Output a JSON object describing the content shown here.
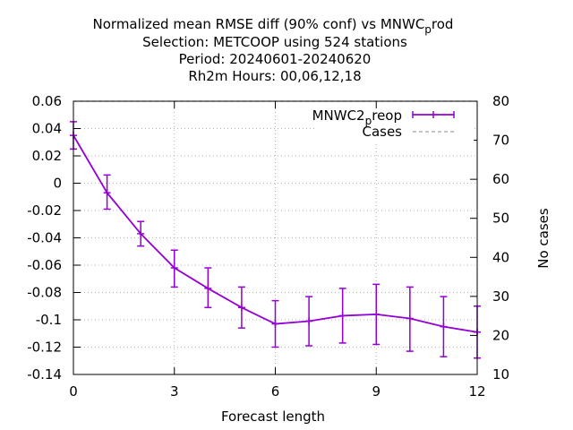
{
  "chart_data": {
    "type": "line",
    "title_lines": [
      "Normalized mean RMSE diff (90% conf) vs MNWC",
      "Selection: METCOOP using   524 stations",
      "Period: 20240601-20240620",
      "Rh2m   Hours: 00,06,12,18"
    ],
    "title_main": "Normalized mean RMSE diff (90% conf) vs MNWC",
    "title_sub": "p",
    "title_tail": "rod",
    "xlabel": "Forecast length",
    "ylabel": "",
    "y2label": "No cases",
    "xlim": [
      0,
      12
    ],
    "ylim": [
      -0.14,
      0.06
    ],
    "y2lim": [
      10,
      80
    ],
    "xticks": [
      "0",
      "3",
      "6",
      "9",
      "12"
    ],
    "yticks": [
      "0.06",
      "0.04",
      "0.02",
      "0",
      "-0.02",
      "-0.04",
      "-0.06",
      "-0.08",
      "-0.1",
      "-0.12",
      "-0.14"
    ],
    "y2ticks": [
      "80",
      "70",
      "60",
      "50",
      "40",
      "30",
      "20",
      "10"
    ],
    "grid": true,
    "legend_position": "top-right",
    "colors": {
      "series": "#9400d3",
      "cases": "#a0a0a0"
    },
    "series": [
      {
        "name_main": "MNWC2",
        "name_sub": "p",
        "name_tail": "reop",
        "x": [
          0,
          1,
          2,
          3,
          4,
          5,
          6,
          7,
          8,
          9,
          10,
          11,
          12
        ],
        "values": [
          0.035,
          -0.007,
          -0.037,
          -0.062,
          -0.077,
          -0.091,
          -0.103,
          -0.101,
          -0.097,
          -0.096,
          -0.099,
          -0.105,
          -0.109
        ],
        "err_low": [
          0.025,
          -0.019,
          -0.046,
          -0.076,
          -0.091,
          -0.106,
          -0.12,
          -0.119,
          -0.117,
          -0.118,
          -0.123,
          -0.127,
          -0.128
        ],
        "err_high": [
          0.045,
          0.006,
          -0.028,
          -0.049,
          -0.062,
          -0.076,
          -0.086,
          -0.083,
          -0.077,
          -0.074,
          -0.076,
          -0.083,
          -0.09
        ]
      },
      {
        "name": "Cases",
        "x": [
          0,
          1,
          2,
          3,
          4,
          5,
          6,
          7,
          8,
          9,
          10,
          11,
          12
        ],
        "values": [
          80,
          80,
          80,
          80,
          80,
          80,
          80,
          80,
          80,
          80,
          80,
          80,
          80
        ]
      }
    ]
  }
}
